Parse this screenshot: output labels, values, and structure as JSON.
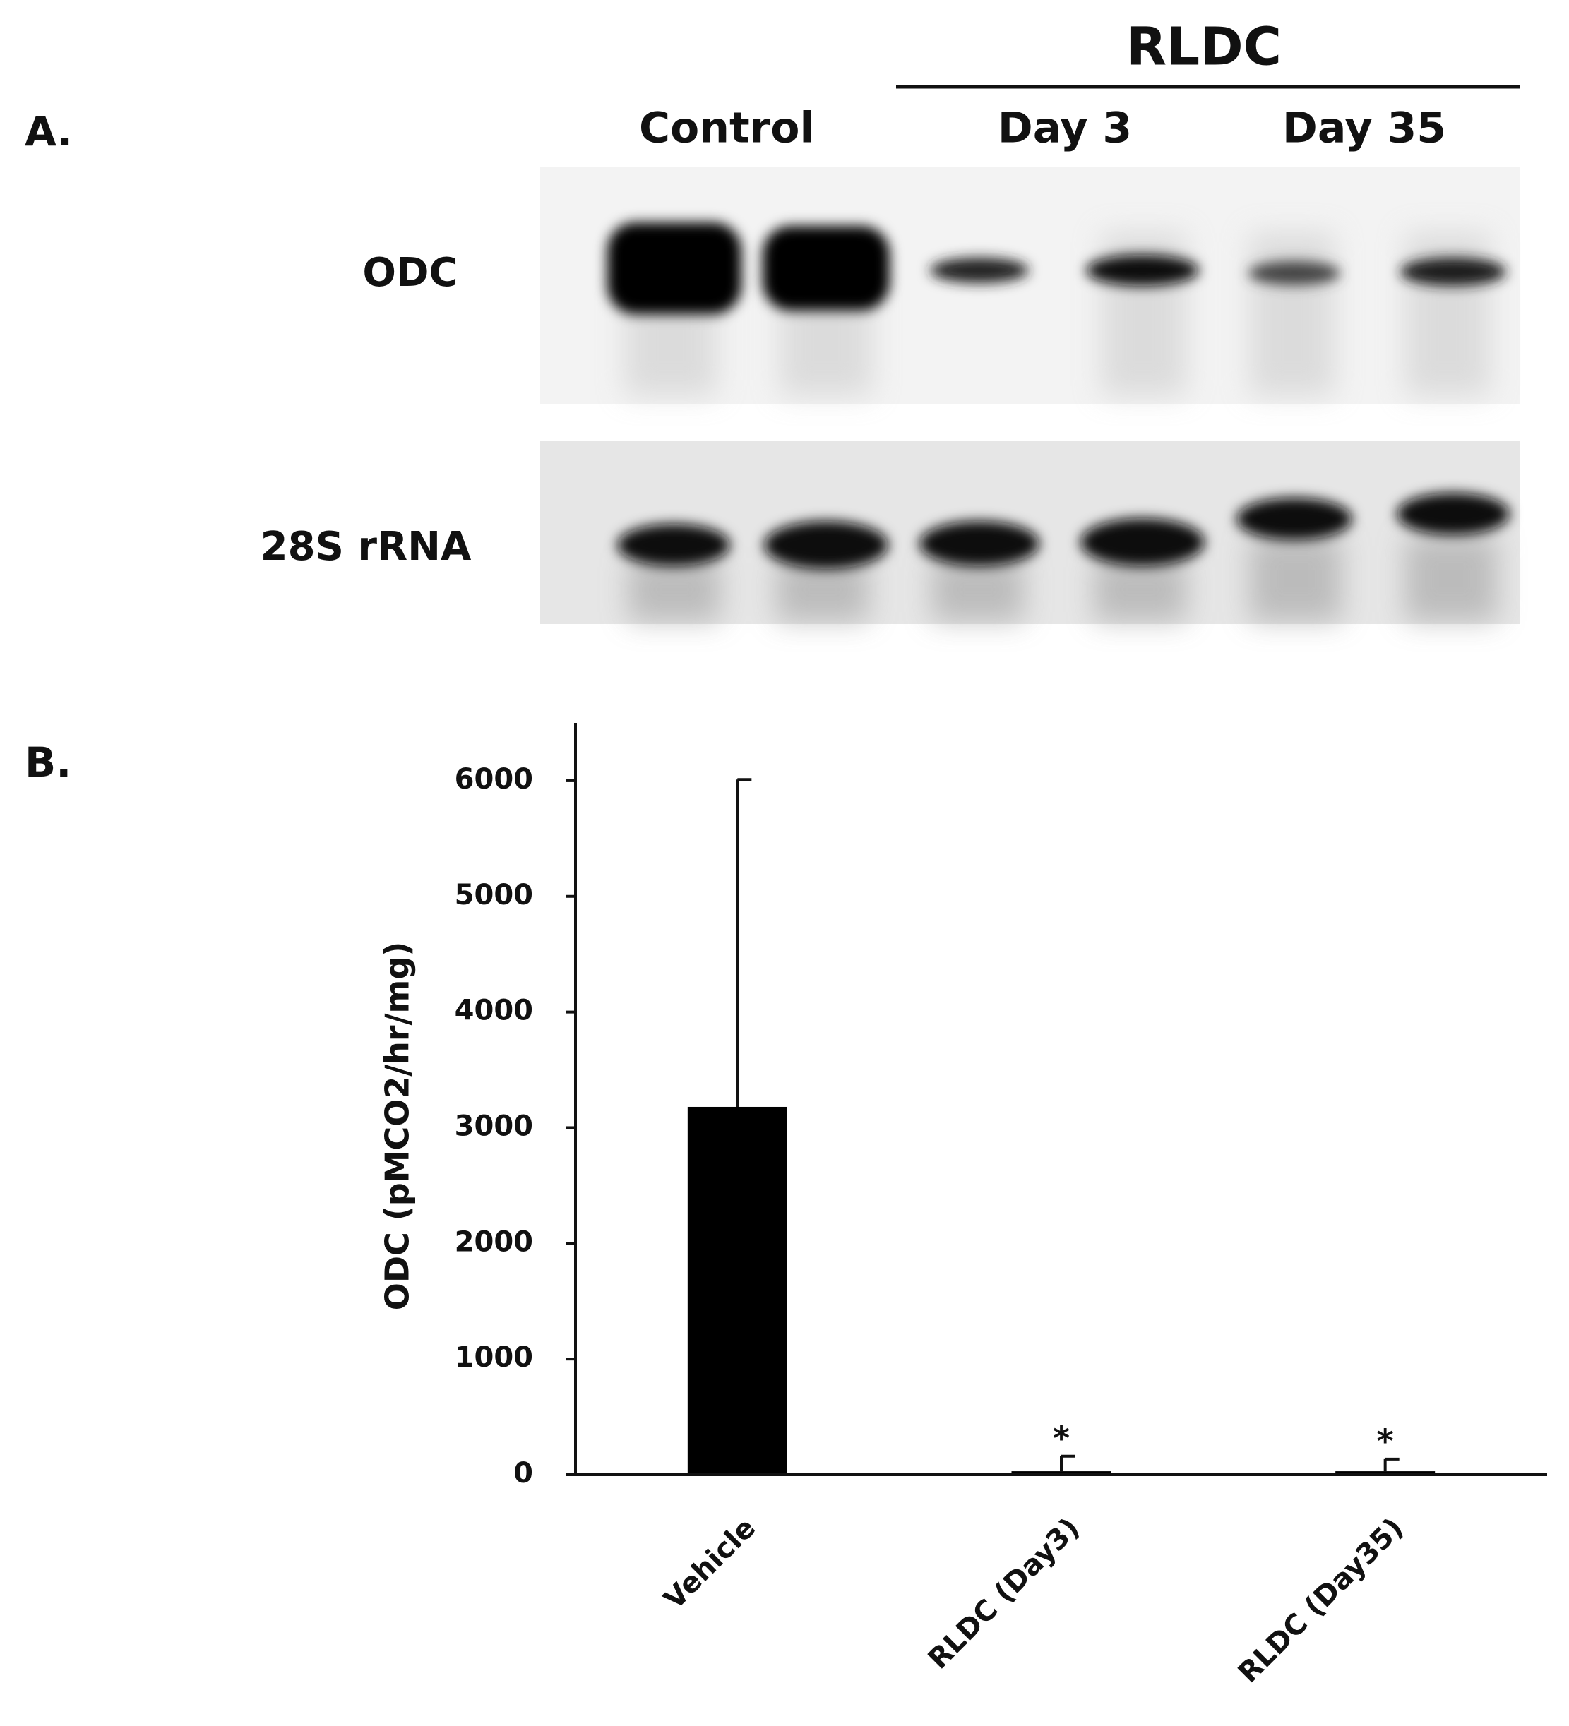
{
  "panel_a": {
    "label": "A.",
    "group_label": "RLDC",
    "lane_labels": [
      "Control",
      "Day 3",
      "Day 35"
    ],
    "row_labels": [
      "ODC",
      "28S rRNA"
    ]
  },
  "chart_data": {
    "type": "bar",
    "panel_label": "B.",
    "y_label": "ODC (pMCO2/hr/mg)",
    "categories": [
      "Vehicle",
      "RLDC (Day3)",
      "RLDC (Day35)"
    ],
    "values": [
      3180,
      30,
      30
    ],
    "errors": [
      2830,
      130,
      105
    ],
    "significance": [
      null,
      "*",
      "*"
    ],
    "color": "#000000",
    "ylim": [
      0,
      6500
    ],
    "yticks": [
      0,
      1000,
      2000,
      3000,
      4000,
      5000,
      6000
    ]
  }
}
